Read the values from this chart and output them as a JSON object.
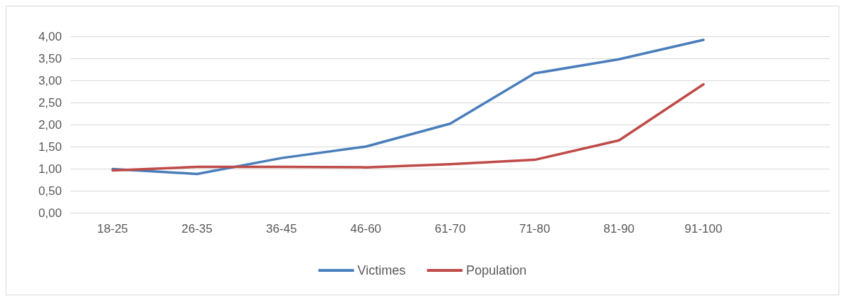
{
  "chart_data": {
    "type": "line",
    "categories": [
      "18-25",
      "26-35",
      "36-45",
      "46-60",
      "61-70",
      "71-80",
      "81-90",
      "91-100",
      null
    ],
    "series": [
      {
        "name": "Victimes",
        "color": "#4a7ebb",
        "values": [
          0.99,
          0.88,
          1.24,
          1.5,
          2.02,
          3.16,
          3.48,
          3.92,
          null
        ]
      },
      {
        "name": "Population",
        "color": "#be4b48",
        "values": [
          0.96,
          1.04,
          1.04,
          1.03,
          1.1,
          1.2,
          1.64,
          2.91,
          null
        ]
      }
    ],
    "ylim": [
      0,
      4
    ],
    "yticks": [
      {
        "value": 0,
        "label": "0,00"
      },
      {
        "value": 0.5,
        "label": "0,50"
      },
      {
        "value": 1,
        "label": "1,00"
      },
      {
        "value": 1.5,
        "label": "1,50"
      },
      {
        "value": 2,
        "label": "2,00"
      },
      {
        "value": 2.5,
        "label": "2,50"
      },
      {
        "value": 3,
        "label": "3,00"
      },
      {
        "value": 3.5,
        "label": "3,50"
      },
      {
        "value": 4,
        "label": "4,00"
      }
    ],
    "grid": "y",
    "legend": "bottom",
    "marker": "none",
    "line_style": "solid"
  }
}
